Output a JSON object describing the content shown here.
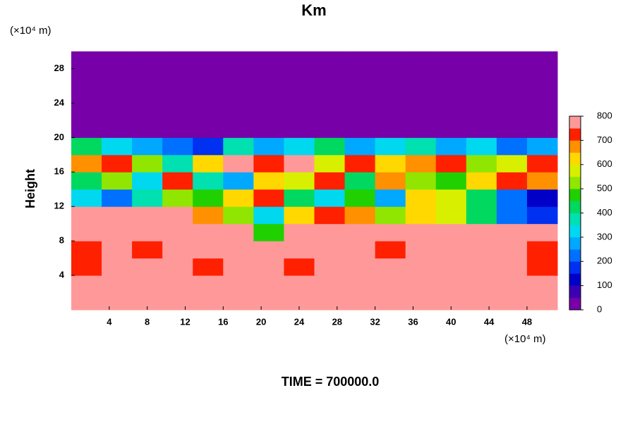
{
  "chart_data": {
    "type": "heatmap",
    "title": "Km",
    "ylabel": "Height",
    "y_unit_label": "(×10⁴ m)",
    "x_unit_label": "(×10⁴ m)",
    "annotation": "TIME = 700000.0",
    "xlim": [
      0,
      51.2
    ],
    "ylim": [
      0,
      30
    ],
    "xticks": [
      4,
      8,
      12,
      16,
      20,
      24,
      28,
      32,
      36,
      40,
      44,
      48
    ],
    "yticks": [
      4,
      8,
      12,
      16,
      20,
      24,
      28
    ],
    "xbins": [
      0,
      3.2,
      6.4,
      9.6,
      12.8,
      16,
      19.2,
      22.4,
      25.6,
      28.8,
      32,
      35.2,
      38.4,
      41.6,
      44.8,
      48,
      51.2
    ],
    "ybins": [
      0,
      2,
      4,
      6,
      8,
      10,
      12,
      14,
      16,
      18,
      20,
      22,
      24,
      26,
      28,
      30
    ],
    "z": [
      [
        800,
        800,
        800,
        800,
        800,
        800,
        800,
        800,
        800,
        800,
        800,
        800,
        800,
        800,
        800,
        800
      ],
      [
        800,
        800,
        800,
        800,
        750,
        800,
        800,
        800,
        800,
        800,
        800,
        800,
        800,
        800,
        750,
        800
      ],
      [
        700,
        750,
        800,
        800,
        700,
        800,
        800,
        700,
        750,
        800,
        800,
        800,
        800,
        800,
        750,
        700
      ],
      [
        700,
        750,
        700,
        800,
        800,
        800,
        800,
        750,
        800,
        800,
        700,
        800,
        800,
        800,
        800,
        700
      ],
      [
        750,
        800,
        800,
        800,
        750,
        800,
        450,
        800,
        800,
        800,
        750,
        800,
        800,
        800,
        800,
        800
      ],
      [
        800,
        800,
        800,
        800,
        650,
        500,
        300,
        600,
        700,
        650,
        500,
        600,
        550,
        400,
        200,
        150
      ],
      [
        300,
        200,
        350,
        500,
        450,
        600,
        700,
        400,
        300,
        450,
        250,
        600,
        550,
        400,
        200,
        100
      ],
      [
        400,
        500,
        300,
        700,
        350,
        250,
        600,
        550,
        700,
        400,
        650,
        500,
        450,
        600,
        700,
        650
      ],
      [
        650,
        700,
        500,
        350,
        600,
        750,
        700,
        750,
        550,
        700,
        600,
        650,
        700,
        500,
        550,
        700
      ],
      [
        400,
        300,
        250,
        200,
        150,
        350,
        250,
        300,
        400,
        250,
        300,
        350,
        250,
        300,
        200,
        250
      ],
      [
        0,
        0,
        0,
        0,
        0,
        0,
        0,
        0,
        0,
        0,
        0,
        0,
        0,
        0,
        0,
        0
      ],
      [
        0,
        0,
        0,
        0,
        0,
        0,
        0,
        0,
        0,
        0,
        0,
        0,
        0,
        0,
        0,
        0
      ],
      [
        0,
        0,
        0,
        0,
        0,
        0,
        0,
        0,
        0,
        0,
        0,
        0,
        0,
        0,
        0,
        0
      ],
      [
        0,
        0,
        0,
        0,
        0,
        0,
        0,
        0,
        0,
        0,
        0,
        0,
        0,
        0,
        0,
        0
      ],
      [
        0,
        0,
        0,
        0,
        0,
        0,
        0,
        0,
        0,
        0,
        0,
        0,
        0,
        0,
        0,
        0
      ]
    ],
    "colorbar": {
      "levels": [
        0,
        50,
        100,
        150,
        200,
        250,
        300,
        350,
        400,
        450,
        500,
        550,
        600,
        650,
        700,
        750,
        800
      ],
      "colors": [
        "#7700a8",
        "#3c00b4",
        "#0000c8",
        "#0030f0",
        "#0070ff",
        "#00a8ff",
        "#00d8f0",
        "#00e0b0",
        "#00d860",
        "#20d000",
        "#90e600",
        "#d8f000",
        "#ffd800",
        "#ff9000",
        "#ff2000",
        "#ff9999"
      ],
      "ticks": [
        0,
        100,
        200,
        300,
        400,
        500,
        600,
        700,
        800
      ]
    }
  }
}
